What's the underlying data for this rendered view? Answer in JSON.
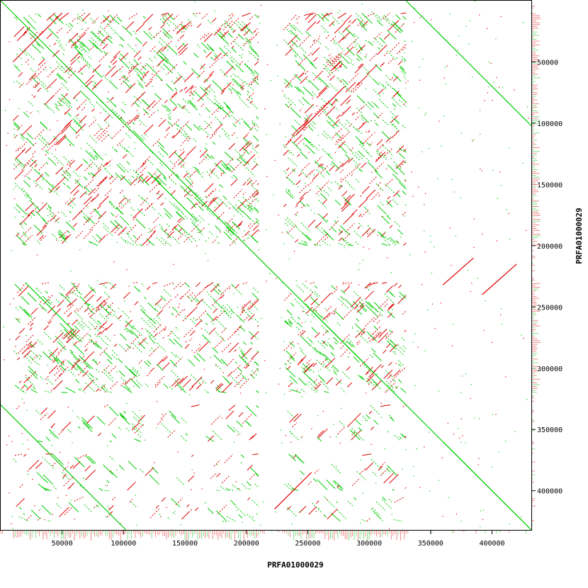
{
  "chart_data": {
    "type": "scatter",
    "subtype": "dotplot",
    "xlabel": "PRFA01000029",
    "ylabel": "PRFA01000029",
    "xlim": [
      0,
      432000
    ],
    "ylim": [
      0,
      432000
    ],
    "y_axis_inverted": true,
    "x_ticks": [
      50000,
      100000,
      150000,
      200000,
      250000,
      300000,
      350000,
      400000
    ],
    "y_ticks": [
      50000,
      100000,
      150000,
      200000,
      250000,
      300000,
      350000,
      400000
    ],
    "x_tick_labels": [
      "50000",
      "100000",
      "150000",
      "200000",
      "250000",
      "300000",
      "350000",
      "400000"
    ],
    "y_tick_labels": [
      "50000",
      "100000",
      "150000",
      "200000",
      "250000",
      "300000",
      "350000",
      "400000"
    ],
    "grid": false,
    "legend": "none",
    "series": [
      {
        "key": "forward",
        "color": "#00cc00",
        "segments": [
          {
            "x": [
              0,
              432000
            ],
            "y": [
              0,
              432000
            ]
          },
          {
            "x": [
              330000,
              432000
            ],
            "y": [
              0,
              102000
            ]
          },
          {
            "x": [
              0,
              102000
            ],
            "y": [
              330000,
              432000
            ]
          },
          {
            "x": [
              360000,
              430000
            ],
            "y": [
              360000,
              430000
            ]
          },
          {
            "x": [
              20000,
              60000
            ],
            "y": [
              230000,
              270000
            ]
          },
          {
            "x": [
              120000,
              160000
            ],
            "y": [
              140000,
              180000
            ]
          },
          {
            "x": [
              250000,
              300000
            ],
            "y": [
              250000,
              300000
            ]
          }
        ]
      },
      {
        "key": "reverse",
        "color": "#dd0000",
        "segments": [
          {
            "x": [
              223000,
              253000
            ],
            "y": [
              415000,
              385000
            ]
          },
          {
            "x": [
              360000,
              385000
            ],
            "y": [
              232000,
              210000
            ]
          },
          {
            "x": [
              392000,
              420000
            ],
            "y": [
              240000,
              215000
            ]
          },
          {
            "x": [
              10000,
              50000
            ],
            "y": [
              50000,
              10000
            ]
          },
          {
            "x": [
              240000,
              280000
            ],
            "y": [
              110000,
              70000
            ]
          }
        ]
      }
    ],
    "repeat_blocks": {
      "x_ranges": [
        [
          10000,
          210000
        ],
        [
          230000,
          330000
        ]
      ],
      "y_ranges": [
        [
          10000,
          200000
        ],
        [
          230000,
          320000
        ]
      ],
      "forward_color": "#00cc00",
      "reverse_color": "#dd0000"
    },
    "secondary_repeat_blocks": {
      "x_ranges": [
        [
          10000,
          210000
        ],
        [
          230000,
          330000
        ]
      ],
      "y_ranges": [
        [
          330000,
          360000
        ],
        [
          370000,
          400000
        ],
        [
          405000,
          425000
        ]
      ]
    },
    "coverage_histograms": {
      "x_color": "#ee8888",
      "x_alt_color": "#88dd88",
      "y_color": "#ee8888",
      "y_alt_color": "#88dd88"
    }
  }
}
